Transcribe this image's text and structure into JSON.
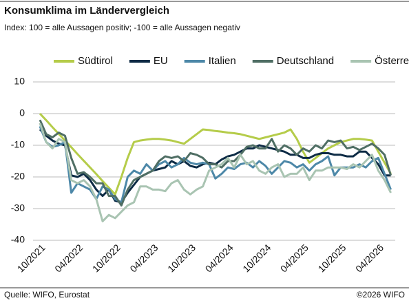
{
  "chart_data": {
    "type": "line",
    "title": "Konsumklima im Ländervergleich",
    "subtitle": "Index: 100 = alle Aussagen positiv; -100 =  alle Aussagen negativ",
    "source": "Quelle: WIFO, Eurostat",
    "copyright": "©2026 WIFO",
    "categories": [
      "10/2021",
      null,
      null,
      null,
      null,
      null,
      "04/2022",
      null,
      null,
      null,
      null,
      null,
      "10/2022",
      null,
      null,
      null,
      null,
      null,
      "04/2023",
      null,
      null,
      null,
      null,
      null,
      "10/2023",
      null,
      null,
      null,
      null,
      null,
      "04/2024",
      null,
      null,
      null,
      null,
      null,
      "10/2024",
      null,
      null,
      null,
      null,
      null,
      "04/2025",
      null,
      null,
      null,
      null,
      null,
      "10/2025",
      null,
      null,
      null,
      null,
      null,
      "04/2026",
      null,
      null
    ],
    "ylim": [
      -40,
      10
    ],
    "yticks": [
      10,
      0,
      -10,
      -20,
      -30,
      -40
    ],
    "grid": true,
    "series": [
      {
        "name": "Südtirol",
        "color": "#b5cc4a",
        "values": [
          0,
          -2.1,
          -4.3,
          -6.4,
          -8.5,
          -10.6,
          -12.8,
          -14.9,
          -17,
          -19.1,
          -21.3,
          -23.4,
          -25.5,
          -20,
          -14,
          -9,
          -8.5,
          -8.2,
          -8,
          -8,
          -8.2,
          -8.5,
          -9,
          -9.5,
          -8,
          -6.5,
          -5,
          -5.2,
          -5.5,
          -5.7,
          -6,
          -6.2,
          -6.5,
          -7,
          -7.5,
          -8,
          -7.5,
          -7,
          -6.5,
          -6,
          -5,
          -8,
          -12,
          -15.5,
          -14,
          -12.5,
          -11,
          -10,
          -9,
          -8.5,
          -8,
          -8,
          -8.2,
          -8.5,
          -12,
          -15.5,
          -19
        ]
      },
      {
        "name": "EU",
        "color": "#0d2b45",
        "values": [
          -5,
          -7,
          -8.5,
          -9.5,
          -10,
          -19.5,
          -20,
          -19,
          -21,
          -24,
          -26,
          -24,
          -27.5,
          -28,
          -25,
          -22.5,
          -20,
          -19,
          -18,
          -17.5,
          -17,
          -15,
          -16,
          -15,
          -16.5,
          -17,
          -16,
          -15.5,
          -16,
          -14.5,
          -13.5,
          -13,
          -12,
          -11,
          -11,
          -10,
          -10.5,
          -11,
          -11.5,
          -12,
          -13,
          -13,
          -14,
          -14,
          -13,
          -12.5,
          -12.5,
          -13,
          -13,
          -13.5,
          -13.5,
          -12,
          -12,
          -14,
          -16,
          -19.5,
          -19.5
        ]
      },
      {
        "name": "Italien",
        "color": "#4d88a8",
        "values": [
          -4,
          -9,
          -10.5,
          -10,
          -9,
          -25,
          -22,
          -23,
          -24,
          -27,
          -23,
          -24,
          -27,
          -28,
          -20,
          -18,
          -19,
          -16,
          -18,
          -16,
          -15,
          -17,
          -16,
          -14,
          -15.5,
          -16,
          -15.5,
          -16,
          -20.5,
          -19,
          -17,
          -17.5,
          -16,
          -15.5,
          -17,
          -15,
          -16.5,
          -19,
          -17,
          -15,
          -15.5,
          -17,
          -16,
          -18,
          -16,
          -15,
          -13.5,
          -19.5,
          -17,
          -17,
          -17,
          -16,
          -17,
          -15,
          -14,
          -19,
          -24
        ]
      },
      {
        "name": "Deutschland",
        "color": "#4f6e64",
        "values": [
          -2,
          -6.5,
          -7.5,
          -6,
          -7,
          -14,
          -19,
          -18.5,
          -20,
          -22,
          -22,
          -26,
          -26,
          -29,
          -24,
          -21,
          -20,
          -19,
          -18,
          -15,
          -13.5,
          -14,
          -13.5,
          -15,
          -12.5,
          -13,
          -14,
          -16,
          -16,
          -17,
          -15,
          -15,
          -13,
          -10.5,
          -10,
          -11,
          -11,
          -8,
          -12,
          -10,
          -11,
          -13,
          -11,
          -12,
          -10,
          -11,
          -8.5,
          -9,
          -8.5,
          -11,
          -10.5,
          -11.5,
          -10.5,
          -9.5,
          -11,
          -13,
          -19.5
        ]
      },
      {
        "name": "Österreich",
        "color": "#a9c4b2",
        "values": [
          -3,
          -9,
          -11,
          -8,
          -9,
          -21,
          -22,
          -21,
          -23,
          -27,
          -34,
          -32,
          -33,
          -31,
          -29,
          -28,
          -23,
          -23,
          -24,
          -24,
          -24.5,
          -22,
          -21,
          -24,
          -25.5,
          -24,
          -23,
          -18,
          -17,
          -16,
          -14,
          -17,
          -13,
          -16,
          -15,
          -18,
          -19,
          -17,
          -16,
          -20,
          -19,
          -19,
          -17,
          -21,
          -18,
          -18,
          -17,
          -17,
          -17,
          -17.5,
          -16,
          -17,
          -15,
          -13,
          -18,
          -21,
          -25
        ]
      }
    ]
  }
}
